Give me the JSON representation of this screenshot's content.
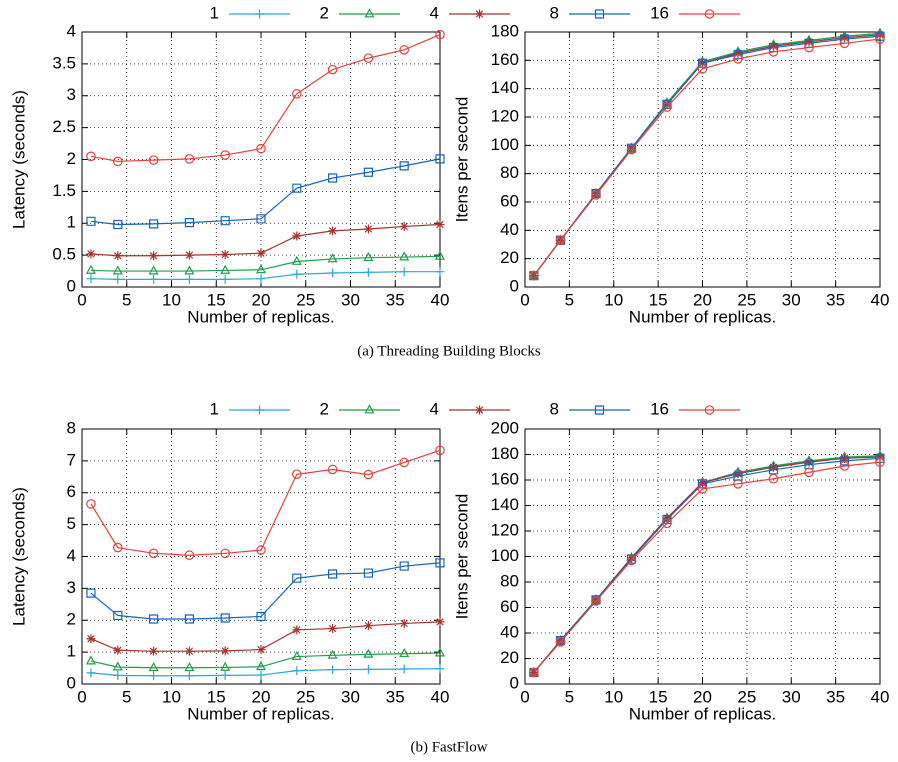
{
  "chart_data": [
    {
      "type": "line",
      "xlabel": "Number of replicas.",
      "ylabel": "Latency (seconds)",
      "grid": true,
      "x": [
        1,
        4,
        8,
        12,
        16,
        20,
        24,
        28,
        32,
        36,
        40
      ],
      "xlim": [
        0,
        40
      ],
      "xticks": [
        0,
        5,
        10,
        15,
        20,
        25,
        30,
        35,
        40
      ],
      "ylim": [
        0,
        4
      ],
      "yticks": [
        0,
        0.5,
        1,
        1.5,
        2,
        2.5,
        3,
        3.5,
        4
      ],
      "series": [
        {
          "name": "1",
          "color": "#2aa7e0",
          "marker": "plus",
          "values": [
            0.13,
            0.12,
            0.12,
            0.12,
            0.12,
            0.13,
            0.2,
            0.22,
            0.23,
            0.24,
            0.24
          ]
        },
        {
          "name": "2",
          "color": "#1f9e4b",
          "marker": "triangle",
          "values": [
            0.26,
            0.25,
            0.25,
            0.25,
            0.26,
            0.27,
            0.4,
            0.44,
            0.46,
            0.47,
            0.48
          ]
        },
        {
          "name": "4",
          "color": "#a8322d",
          "marker": "star",
          "values": [
            0.52,
            0.49,
            0.49,
            0.5,
            0.51,
            0.53,
            0.8,
            0.88,
            0.91,
            0.95,
            0.98
          ]
        },
        {
          "name": "8",
          "color": "#1565c0",
          "marker": "square",
          "values": [
            1.03,
            0.98,
            0.99,
            1.01,
            1.04,
            1.07,
            1.55,
            1.71,
            1.8,
            1.9,
            2.01
          ]
        },
        {
          "name": "16",
          "color": "#e8403a",
          "marker": "circle",
          "values": [
            2.05,
            1.97,
            1.99,
            2.01,
            2.07,
            2.17,
            3.03,
            3.41,
            3.59,
            3.72,
            3.96
          ]
        }
      ]
    },
    {
      "type": "line",
      "xlabel": "Number of replicas.",
      "ylabel": "Itens per second",
      "grid": true,
      "x": [
        1,
        4,
        8,
        12,
        16,
        20,
        24,
        28,
        32,
        36,
        40
      ],
      "xlim": [
        0,
        40
      ],
      "xticks": [
        0,
        5,
        10,
        15,
        20,
        25,
        30,
        35,
        40
      ],
      "ylim": [
        0,
        180
      ],
      "yticks": [
        0,
        20,
        40,
        60,
        80,
        100,
        120,
        140,
        160,
        180
      ],
      "series": [
        {
          "name": "1",
          "color": "#2aa7e0",
          "marker": "plus",
          "values": [
            8,
            33,
            66,
            98,
            130,
            159,
            165,
            170,
            174,
            177,
            179
          ]
        },
        {
          "name": "2",
          "color": "#1f9e4b",
          "marker": "triangle",
          "values": [
            8,
            33,
            66,
            98,
            130,
            159,
            166,
            171,
            174,
            177,
            179
          ]
        },
        {
          "name": "4",
          "color": "#a8322d",
          "marker": "star",
          "values": [
            8,
            33,
            66,
            98,
            129,
            158,
            165,
            170,
            173,
            176,
            178
          ]
        },
        {
          "name": "8",
          "color": "#1565c0",
          "marker": "square",
          "values": [
            8,
            33,
            66,
            98,
            129,
            158,
            164,
            169,
            172,
            175,
            177
          ]
        },
        {
          "name": "16",
          "color": "#e8403a",
          "marker": "circle",
          "values": [
            8,
            33,
            65,
            97,
            127,
            154,
            161,
            166,
            169,
            172,
            175
          ]
        }
      ]
    },
    {
      "type": "line",
      "xlabel": "Number of replicas.",
      "ylabel": "Latency (seconds)",
      "grid": true,
      "x": [
        1,
        4,
        8,
        12,
        16,
        20,
        24,
        28,
        32,
        36,
        40
      ],
      "xlim": [
        0,
        40
      ],
      "xticks": [
        0,
        5,
        10,
        15,
        20,
        25,
        30,
        35,
        40
      ],
      "ylim": [
        0,
        8
      ],
      "yticks": [
        0,
        1,
        2,
        3,
        4,
        5,
        6,
        7,
        8
      ],
      "series": [
        {
          "name": "1",
          "color": "#2aa7e0",
          "marker": "plus",
          "values": [
            0.35,
            0.27,
            0.26,
            0.26,
            0.27,
            0.28,
            0.42,
            0.45,
            0.46,
            0.47,
            0.48
          ]
        },
        {
          "name": "2",
          "color": "#1f9e4b",
          "marker": "triangle",
          "values": [
            0.72,
            0.53,
            0.51,
            0.51,
            0.52,
            0.54,
            0.86,
            0.9,
            0.93,
            0.95,
            0.97
          ]
        },
        {
          "name": "4",
          "color": "#a8322d",
          "marker": "star",
          "values": [
            1.42,
            1.06,
            1.03,
            1.03,
            1.04,
            1.08,
            1.7,
            1.74,
            1.83,
            1.9,
            1.95
          ]
        },
        {
          "name": "8",
          "color": "#1565c0",
          "marker": "square",
          "values": [
            2.85,
            2.15,
            2.04,
            2.04,
            2.07,
            2.12,
            3.32,
            3.45,
            3.48,
            3.7,
            3.8
          ]
        },
        {
          "name": "16",
          "color": "#e8403a",
          "marker": "circle",
          "values": [
            5.65,
            4.28,
            4.1,
            4.04,
            4.1,
            4.2,
            6.58,
            6.73,
            6.57,
            6.95,
            7.33
          ]
        }
      ]
    },
    {
      "type": "line",
      "xlabel": "Number of replicas.",
      "ylabel": "Itens per second",
      "grid": true,
      "x": [
        1,
        4,
        8,
        12,
        16,
        20,
        24,
        28,
        32,
        36,
        40
      ],
      "xlim": [
        0,
        40
      ],
      "xticks": [
        0,
        5,
        10,
        15,
        20,
        25,
        30,
        35,
        40
      ],
      "ylim": [
        0,
        200
      ],
      "yticks": [
        0,
        20,
        40,
        60,
        80,
        100,
        120,
        140,
        160,
        180,
        200
      ],
      "series": [
        {
          "name": "1",
          "color": "#2aa7e0",
          "marker": "plus",
          "values": [
            9,
            34,
            66,
            99,
            130,
            158,
            165,
            171,
            175,
            177,
            179
          ]
        },
        {
          "name": "2",
          "color": "#1f9e4b",
          "marker": "triangle",
          "values": [
            9,
            34,
            66,
            99,
            130,
            158,
            166,
            171,
            175,
            178,
            179
          ]
        },
        {
          "name": "4",
          "color": "#a8322d",
          "marker": "star",
          "values": [
            9,
            34,
            66,
            99,
            130,
            158,
            165,
            170,
            174,
            177,
            178
          ]
        },
        {
          "name": "8",
          "color": "#1565c0",
          "marker": "square",
          "values": [
            9,
            34,
            66,
            98,
            129,
            157,
            163,
            168,
            172,
            175,
            177
          ]
        },
        {
          "name": "16",
          "color": "#e8403a",
          "marker": "circle",
          "values": [
            9,
            33,
            65,
            97,
            126,
            153,
            157,
            161,
            166,
            171,
            174
          ]
        }
      ]
    }
  ],
  "captions": [
    "(a) Threading Building Blocks",
    "(b) FastFlow"
  ]
}
